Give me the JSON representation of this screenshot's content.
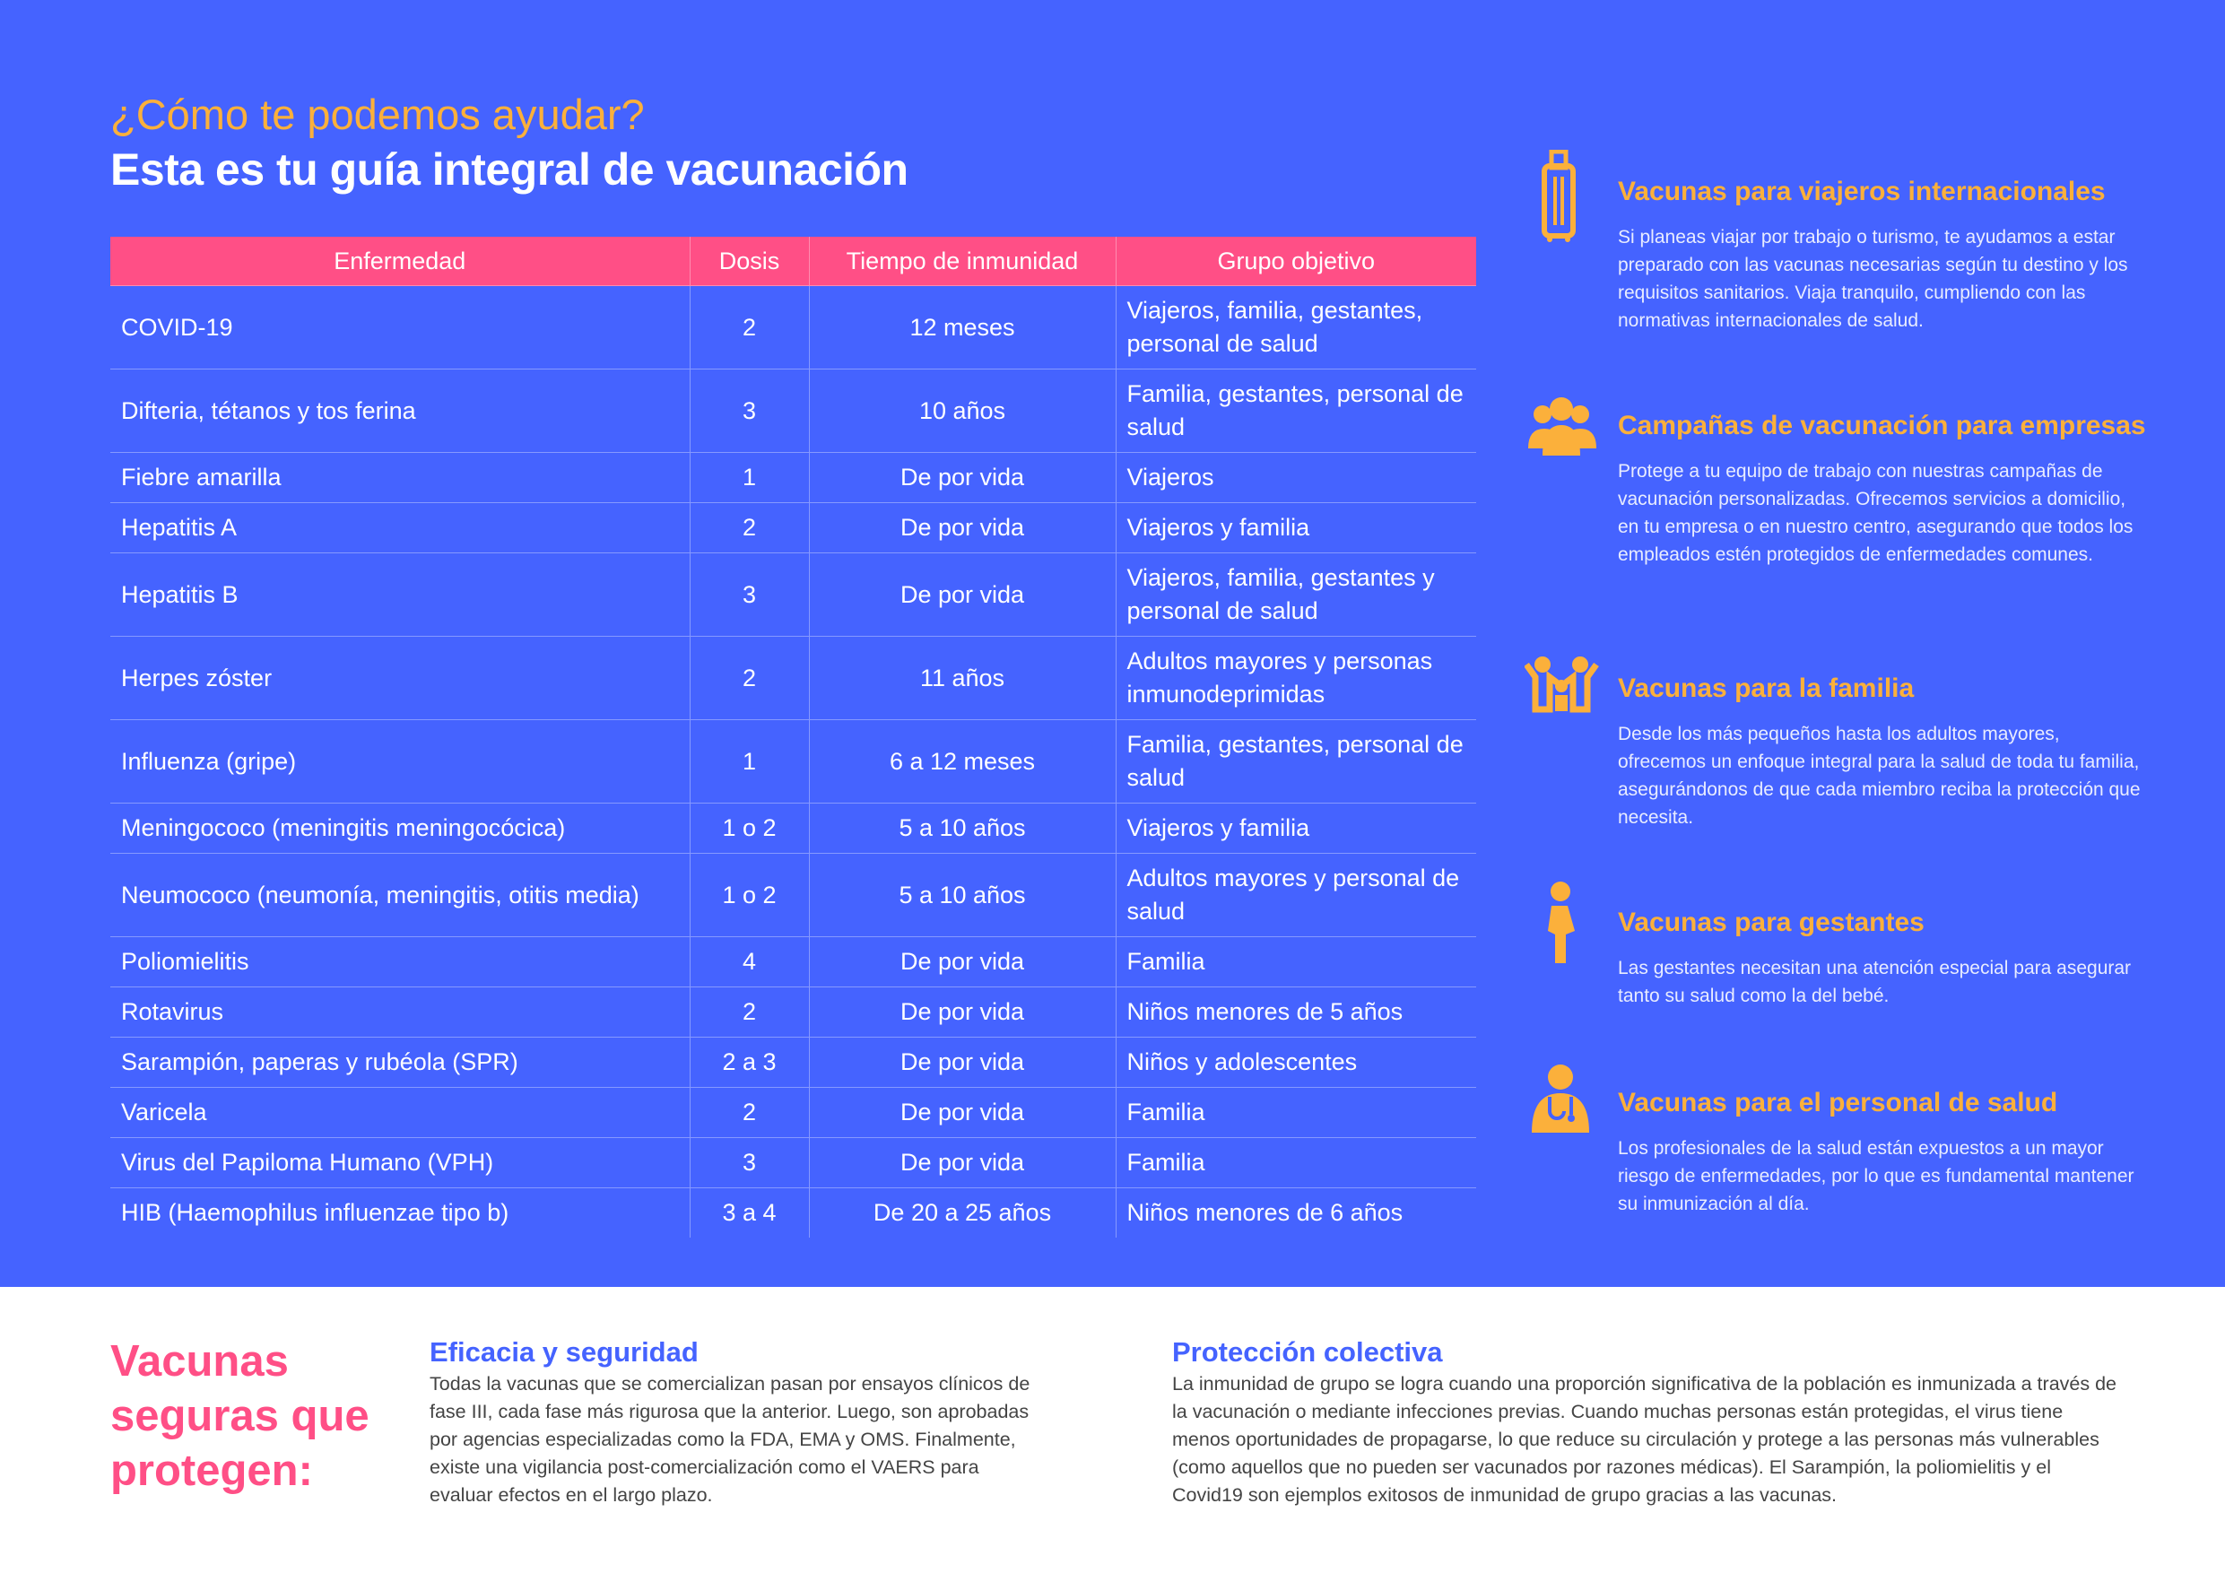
{
  "header": {
    "subtitle": "¿Cómo te podemos ayudar?",
    "title": "Esta es tu guía integral de vacunación"
  },
  "table": {
    "columns": [
      "Enfermedad",
      "Dosis",
      "Tiempo de inmunidad",
      "Grupo objetivo"
    ],
    "rows": [
      [
        "COVID-19",
        "2",
        "12 meses",
        "Viajeros, familia, gestantes, personal de salud"
      ],
      [
        "Difteria, tétanos y tos ferina",
        "3",
        "10 años",
        "Familia, gestantes, personal de salud"
      ],
      [
        "Fiebre amarilla",
        "1",
        "De por vida",
        "Viajeros"
      ],
      [
        "Hepatitis A",
        "2",
        "De por vida",
        "Viajeros y familia"
      ],
      [
        "Hepatitis B",
        "3",
        "De por vida",
        "Viajeros, familia, gestantes y personal de salud"
      ],
      [
        "Herpes zóster",
        "2",
        "11 años",
        "Adultos mayores  y personas inmunodeprimidas"
      ],
      [
        "Influenza (gripe)",
        "1",
        "6 a 12 meses",
        "Familia, gestantes, personal de salud"
      ],
      [
        "Meningococo (meningitis meningocócica)",
        "1 o 2",
        "5 a 10 años",
        "Viajeros y familia"
      ],
      [
        "Neumococo (neumonía, meningitis, otitis media)",
        "1 o 2",
        "5 a 10 años",
        "Adultos mayores y personal de salud"
      ],
      [
        "Poliomielitis",
        "4",
        "De por vida",
        "Familia"
      ],
      [
        "Rotavirus",
        "2",
        "De por vida",
        "Niños menores de 5 años"
      ],
      [
        "Sarampión, paperas y rubéola (SPR)",
        "2 a 3",
        "De por vida",
        "Niños y adolescentes"
      ],
      [
        "Varicela",
        "2",
        "De por vida",
        "Familia"
      ],
      [
        "Virus del Papiloma Humano (VPH)",
        "3",
        "De por vida",
        "Familia"
      ],
      [
        "HIB (Haemophilus influenzae tipo b)",
        "3 a 4",
        "De 20 a 25 años",
        "Niños menores de 6 años"
      ]
    ]
  },
  "services": [
    {
      "title": "Vacunas para viajeros internacionales",
      "text": "Si planeas viajar por trabajo o turismo, te ayudamos a estar preparado con las vacunas necesarias según tu destino y los requisitos sanitarios. Viaja tranquilo, cumpliendo con las normativas internacionales de salud."
    },
    {
      "title": "Campañas de vacunación para empresas",
      "text": "Protege a tu equipo de trabajo con nuestras campañas de vacunación personalizadas. Ofrecemos servicios a domicilio, en tu empresa o en nuestro centro, asegurando que todos los empleados estén protegidos de enfermedades comunes."
    },
    {
      "title": "Vacunas para la familia",
      "text": "Desde los más pequeños hasta los adultos mayores, ofrecemos un enfoque integral para la salud de toda tu familia, asegurándonos de que cada miembro reciba la protección que necesita."
    },
    {
      "title": "Vacunas para gestantes",
      "text": "Las gestantes necesitan una atención especial para asegurar tanto su salud como la del bebé."
    },
    {
      "title": "Vacunas para el personal de salud",
      "text": "Los profesionales de la salud están expuestos a un mayor riesgo de enfermedades, por lo que es fundamental mantener su inmunización al día."
    }
  ],
  "footer": {
    "title": "Vacunas seguras que protegen:",
    "sections": [
      {
        "title": "Eficacia y seguridad",
        "text": "Todas la vacunas que se comercializan pasan por ensayos clínicos de fase III, cada fase más rigurosa que la anterior. Luego, son aprobadas por agencias especializadas como la FDA, EMA y OMS. Finalmente, existe una vigilancia post-comercialización como el VAERS para evaluar efectos en el largo plazo."
      },
      {
        "title": "Protección colectiva",
        "text": "La inmunidad de grupo se logra cuando una proporción significativa de la población es inmunizada a través de la vacunación o mediante infecciones previas. Cuando muchas personas están protegidas, el virus tiene menos oportunidades de propagarse, lo que reduce su circulación y protege a las personas más vulnerables (como aquellos que no pueden ser vacunados por razones médicas). El Sarampión, la poliomielitis y el Covid19 son ejemplos exitosos de inmunidad de grupo gracias a las vacunas."
      }
    ]
  }
}
